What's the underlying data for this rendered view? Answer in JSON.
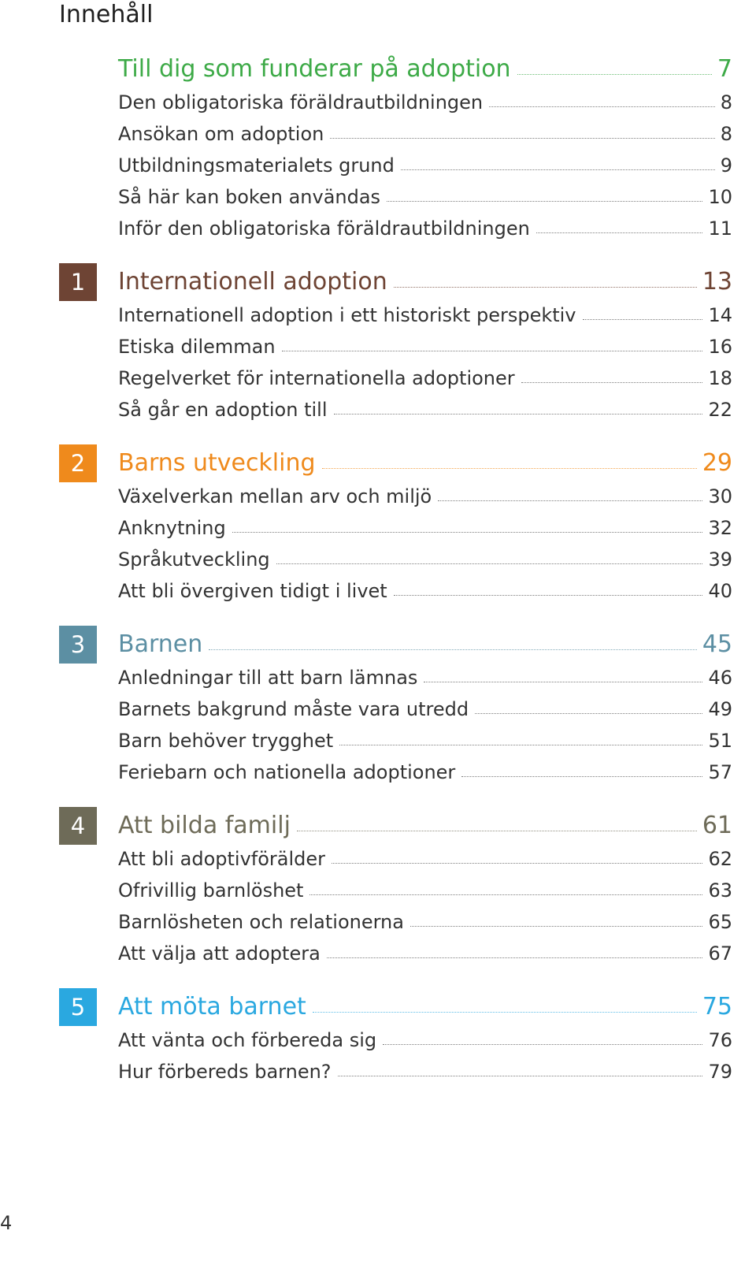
{
  "heading": "Innehåll",
  "intro": {
    "color": "#3daa47",
    "title": "Till dig som funderar på adoption",
    "page": "7",
    "entries": [
      {
        "title": "Den obligatoriska föräldrautbildningen",
        "page": "8"
      },
      {
        "title": "Ansökan om adoption",
        "page": "8"
      },
      {
        "title": "Utbildningsmaterialets grund",
        "page": "9"
      },
      {
        "title": "Så här kan boken användas",
        "page": "10"
      },
      {
        "title": "Inför den obligatoriska föräldrautbildningen",
        "page": "11"
      }
    ]
  },
  "chapters": [
    {
      "number": "1",
      "color": "#6e4434",
      "title": "Internationell adoption",
      "page": "13",
      "entries": [
        {
          "title": "Internationell adoption i ett historiskt perspektiv",
          "page": "14"
        },
        {
          "title": "Etiska dilemman",
          "page": "16"
        },
        {
          "title": "Regelverket för internationella adoptioner",
          "page": "18"
        },
        {
          "title": "Så går en adoption till",
          "page": "22"
        }
      ]
    },
    {
      "number": "2",
      "color": "#ef8a1c",
      "title": "Barns utveckling",
      "page": "29",
      "entries": [
        {
          "title": "Växelverkan mellan arv och miljö",
          "page": "30"
        },
        {
          "title": "Anknytning",
          "page": "32"
        },
        {
          "title": "Språkutveckling",
          "page": "39"
        },
        {
          "title": "Att bli övergiven tidigt i livet",
          "page": "40"
        }
      ]
    },
    {
      "number": "3",
      "color": "#5c8fa3",
      "title": "Barnen",
      "page": "45",
      "entries": [
        {
          "title": "Anledningar till att barn lämnas",
          "page": "46"
        },
        {
          "title": "Barnets bakgrund måste vara utredd",
          "page": "49"
        },
        {
          "title": "Barn behöver trygghet",
          "page": "51"
        },
        {
          "title": "Feriebarn och nationella adoptioner",
          "page": "57"
        }
      ]
    },
    {
      "number": "4",
      "color": "#6e6b58",
      "title": "Att bilda familj",
      "page": "61",
      "entries": [
        {
          "title": "Att bli adoptivförälder",
          "page": "62"
        },
        {
          "title": "Ofrivillig barnlöshet",
          "page": "63"
        },
        {
          "title": "Barnlösheten och relationerna",
          "page": "65"
        },
        {
          "title": "Att välja att adoptera",
          "page": "67"
        }
      ]
    },
    {
      "number": "5",
      "color": "#2aa8e0",
      "title": "Att möta barnet",
      "page": "75",
      "entries": [
        {
          "title": "Att vänta och förbereda sig",
          "page": "76"
        },
        {
          "title": "Hur förbereds barnen?",
          "page": "79"
        }
      ]
    }
  ],
  "page_number": "4"
}
